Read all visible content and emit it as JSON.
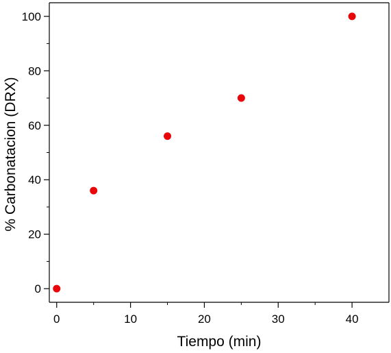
{
  "chart_data": {
    "type": "scatter",
    "title": "",
    "xlabel": "Tiempo (min)",
    "ylabel": "% Carbonatacion (DRX)",
    "xlim": [
      -1,
      45
    ],
    "ylim": [
      -5,
      105
    ],
    "x_ticks": [
      0,
      10,
      20,
      30,
      40
    ],
    "y_ticks": [
      0,
      20,
      40,
      60,
      80,
      100
    ],
    "grid": false,
    "legend": "none",
    "marker_color": "#e8060a",
    "series": [
      {
        "x": [
          0,
          5,
          15,
          25,
          40
        ],
        "y": [
          0,
          36,
          56,
          70,
          100
        ]
      }
    ]
  }
}
